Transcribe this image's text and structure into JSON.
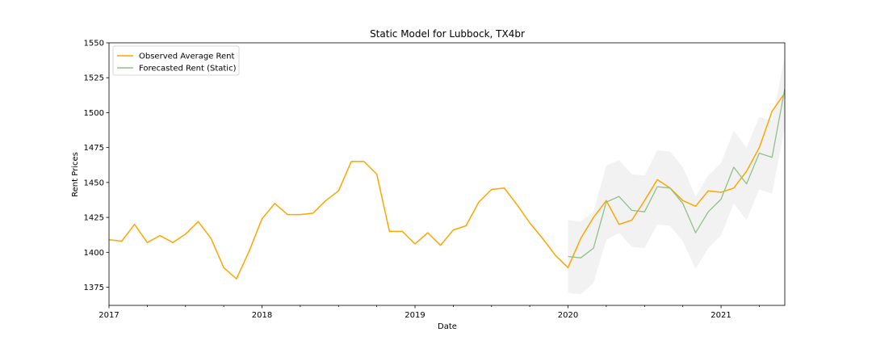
{
  "chart_data": {
    "type": "line",
    "title": "Static Model for Lubbock, TX4br",
    "xlabel": "Date",
    "ylabel": "Rent Prices",
    "xlim": [
      "2017-01",
      "2021-06"
    ],
    "ylim": [
      1362,
      1550
    ],
    "yticks": [
      1375,
      1400,
      1425,
      1450,
      1475,
      1500,
      1525,
      1550
    ],
    "xticks": [
      {
        "date": "2017-01",
        "label": "2017"
      },
      {
        "date": "2018-01",
        "label": "2018"
      },
      {
        "date": "2019-01",
        "label": "2019"
      },
      {
        "date": "2020-01",
        "label": "2020"
      },
      {
        "date": "2021-01",
        "label": "2021"
      }
    ],
    "legend": "upper-left",
    "grid": false,
    "series": [
      {
        "name": "Observed Average Rent",
        "color": "#ffa500",
        "x": [
          "2017-01",
          "2017-02",
          "2017-03",
          "2017-04",
          "2017-05",
          "2017-06",
          "2017-07",
          "2017-08",
          "2017-09",
          "2017-10",
          "2017-11",
          "2017-12",
          "2018-01",
          "2018-02",
          "2018-03",
          "2018-04",
          "2018-05",
          "2018-06",
          "2018-07",
          "2018-08",
          "2018-09",
          "2018-10",
          "2018-11",
          "2018-12",
          "2019-01",
          "2019-02",
          "2019-03",
          "2019-04",
          "2019-05",
          "2019-06",
          "2019-07",
          "2019-08",
          "2019-09",
          "2019-10",
          "2019-11",
          "2019-12",
          "2020-01",
          "2020-02",
          "2020-03",
          "2020-04",
          "2020-05",
          "2020-06",
          "2020-07",
          "2020-08",
          "2020-09",
          "2020-10",
          "2020-11",
          "2020-12",
          "2021-01",
          "2021-02",
          "2021-03",
          "2021-04",
          "2021-05",
          "2021-06"
        ],
        "y": [
          1409,
          1408,
          1420,
          1407,
          1412,
          1407,
          1413,
          1422,
          1410,
          1389,
          1381,
          1401,
          1424,
          1435,
          1427,
          1427,
          1428,
          1437,
          1444,
          1465,
          1465,
          1456,
          1415,
          1415,
          1406,
          1414,
          1405,
          1416,
          1419,
          1436,
          1445,
          1446,
          1434,
          1421,
          1410,
          1398,
          1389,
          1410,
          1425,
          1437,
          1420,
          1423,
          1437,
          1452,
          1446,
          1437,
          1433,
          1444,
          1443,
          1446,
          1458,
          1475,
          1501,
          1514
        ]
      },
      {
        "name": "Forecasted Rent (Static)",
        "color": "#8fc18a",
        "x": [
          "2020-01",
          "2020-02",
          "2020-03",
          "2020-04",
          "2020-05",
          "2020-06",
          "2020-07",
          "2020-08",
          "2020-09",
          "2020-10",
          "2020-11",
          "2020-12",
          "2021-01",
          "2021-02",
          "2021-03",
          "2021-04",
          "2021-05",
          "2021-06"
        ],
        "y": [
          1397,
          1396,
          1403,
          1436,
          1440,
          1430,
          1429,
          1447,
          1446,
          1435,
          1414,
          1429,
          1438,
          1461,
          1449,
          1471,
          1468,
          1517
        ],
        "lower": [
          1371,
          1370,
          1378,
          1409,
          1414,
          1404,
          1403,
          1420,
          1419,
          1408,
          1388,
          1403,
          1412,
          1435,
          1423,
          1445,
          1442,
          1490
        ],
        "upper": [
          1423,
          1422,
          1429,
          1462,
          1466,
          1456,
          1455,
          1473,
          1472,
          1461,
          1440,
          1455,
          1464,
          1487,
          1475,
          1497,
          1494,
          1540
        ],
        "band_color": "#d9d9d9"
      }
    ]
  }
}
